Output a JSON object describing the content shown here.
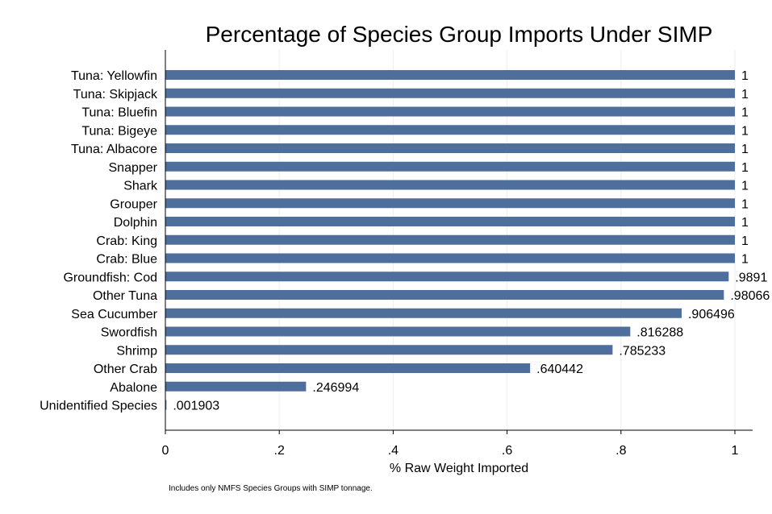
{
  "chart_data": {
    "type": "bar",
    "orientation": "horizontal",
    "title": "Percentage of Species Group Imports Under SIMP",
    "xlabel": "% Raw Weight Imported",
    "ylabel": "",
    "xlim": [
      0,
      1
    ],
    "x_ticks": [
      0,
      0.2,
      0.4,
      0.6,
      0.8,
      1
    ],
    "x_tick_labels": [
      "0",
      ".2",
      ".4",
      ".6",
      ".8",
      "1"
    ],
    "grid": true,
    "bar_color": "#4e6f9c",
    "categories": [
      "Tuna: Yellowfin",
      "Tuna: Skipjack",
      "Tuna: Bluefin",
      "Tuna: Bigeye",
      "Tuna: Albacore",
      "Snapper",
      "Shark",
      "Grouper",
      "Dolphin",
      "Crab: King",
      "Crab: Blue",
      "Groundfish: Cod",
      "Other Tuna",
      "Sea Cucumber",
      "Swordfish",
      "Shrimp",
      "Other Crab",
      "Abalone",
      "Unidentified Species"
    ],
    "values": [
      1,
      1,
      1,
      1,
      1,
      1,
      1,
      1,
      1,
      1,
      1,
      0.9891,
      0.98066,
      0.906496,
      0.816288,
      0.785233,
      0.640442,
      0.246994,
      0.001903
    ],
    "data_labels": [
      "1",
      "1",
      "1",
      "1",
      "1",
      "1",
      "1",
      "1",
      "1",
      "1",
      "1",
      ".9891",
      ".98066",
      ".906496",
      ".816288",
      ".785233",
      ".640442",
      ".246994",
      ".001903"
    ],
    "note": "Includes only NMFS Species Groups with SIMP tonnage."
  }
}
